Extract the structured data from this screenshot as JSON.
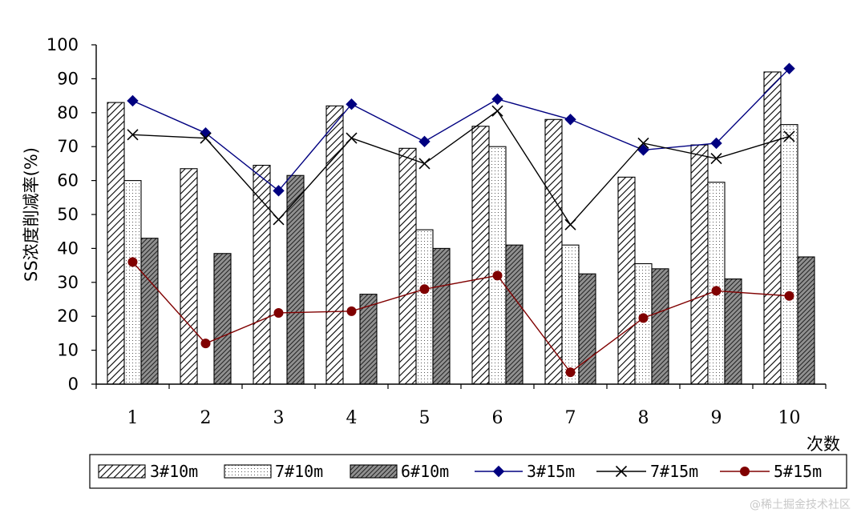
{
  "watermark": "@稀土掘金技术社区",
  "chart_data": {
    "type": "bar",
    "title": "",
    "xlabel": "次数",
    "ylabel": "SS浓度削减率(%)",
    "ylim": [
      0,
      100
    ],
    "yticks": [
      0,
      10,
      20,
      30,
      40,
      50,
      60,
      70,
      80,
      90,
      100
    ],
    "categories": [
      "1",
      "2",
      "3",
      "4",
      "5",
      "6",
      "7",
      "8",
      "9",
      "10"
    ],
    "bar_series": [
      {
        "name": "3#10m",
        "pattern": "hatch",
        "values": [
          83,
          63.5,
          64.5,
          82,
          69.5,
          76,
          78,
          61,
          70.5,
          92
        ]
      },
      {
        "name": "7#10m",
        "pattern": "dots",
        "values": [
          60,
          null,
          null,
          null,
          45.5,
          70,
          41,
          35.5,
          59.5,
          76.5
        ]
      },
      {
        "name": "6#10m",
        "pattern": "dark",
        "values": [
          43,
          38.5,
          61.5,
          26.5,
          40,
          41,
          32.5,
          34,
          31,
          37.5
        ]
      }
    ],
    "line_series": [
      {
        "name": "3#15m",
        "marker": "diamond",
        "color": "#000080",
        "values": [
          83.5,
          74,
          57,
          82.5,
          71.5,
          84,
          78,
          69,
          71,
          93
        ]
      },
      {
        "name": "7#15m",
        "marker": "x",
        "color": "#000000",
        "values": [
          73.5,
          72.5,
          48.5,
          72.5,
          65,
          80.5,
          47,
          71,
          66.5,
          73
        ]
      },
      {
        "name": "5#15m",
        "marker": "circle",
        "color": "#800000",
        "values": [
          36,
          12,
          21,
          21.5,
          28,
          32,
          3.5,
          19.5,
          27.5,
          26
        ]
      }
    ],
    "legend": {
      "position": "bottom",
      "entries": [
        "3#10m",
        "7#10m",
        "6#10m",
        "3#15m",
        "7#15m",
        "5#15m"
      ]
    }
  }
}
